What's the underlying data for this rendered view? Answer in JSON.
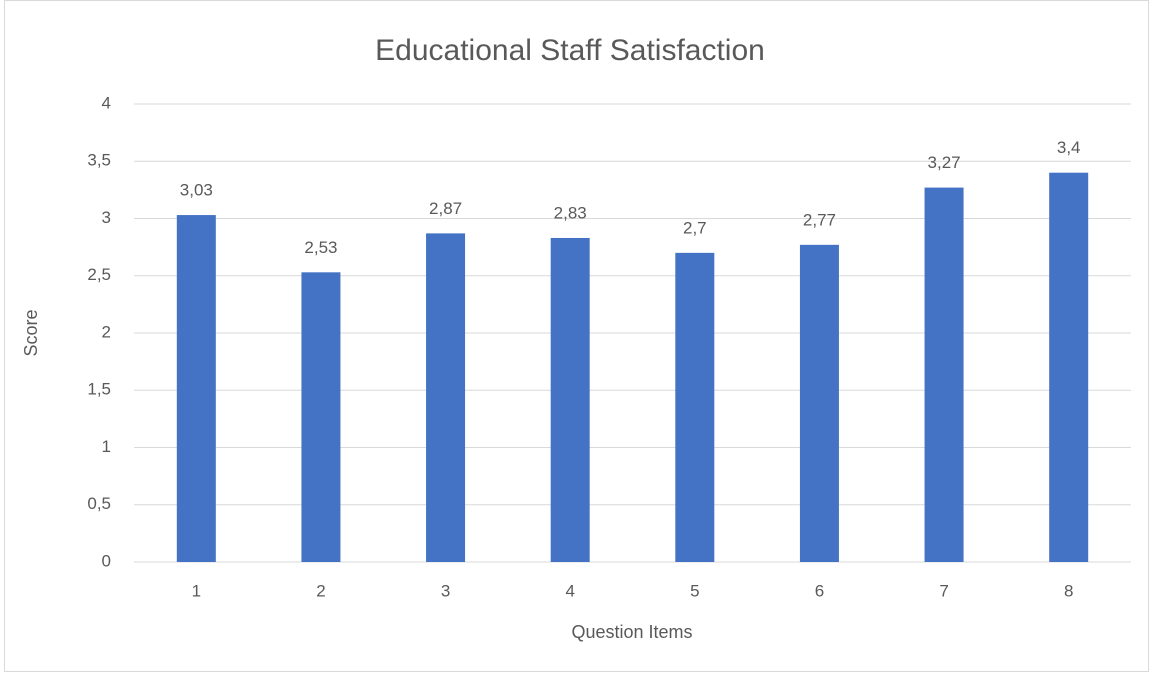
{
  "chart_data": {
    "type": "bar",
    "title": "Educational Staff Satisfaction",
    "x_label": "Question Items",
    "y_label": "Score",
    "categories": [
      "1",
      "2",
      "3",
      "4",
      "5",
      "6",
      "7",
      "8"
    ],
    "values": [
      3.03,
      2.53,
      2.87,
      2.83,
      2.7,
      2.77,
      3.27,
      3.4
    ],
    "value_labels": [
      "3,03",
      "2,53",
      "2,87",
      "2,83",
      "2,7",
      "2,77",
      "3,27",
      "3,4"
    ],
    "color": "#4472c4",
    "ylim": [
      0,
      4
    ],
    "yticks": [
      0,
      {
        "value": 0.5,
        "label": "0,5"
      },
      1,
      {
        "value": 1.5,
        "label": "1,5"
      },
      2,
      {
        "value": 2.5,
        "label": "2,5"
      },
      3,
      {
        "value": 3.5,
        "label": "3,5"
      },
      4
    ],
    "grid": true
  }
}
